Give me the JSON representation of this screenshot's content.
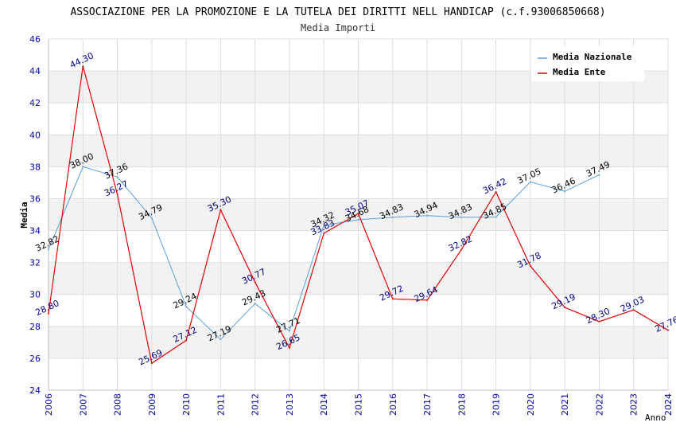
{
  "chart_data": {
    "type": "line",
    "title": "ASSOCIAZIONE PER LA PROMOZIONE E LA TUTELA DEI DIRITTI NELL HANDICAP (c.f.93006850668)",
    "subtitle": "Media Importi",
    "xlabel": "Anno",
    "ylabel": "Media",
    "ylim": [
      24,
      46
    ],
    "y_ticks": [
      "24",
      "26",
      "28",
      "30",
      "32",
      "34",
      "36",
      "38",
      "40",
      "42",
      "44",
      "46"
    ],
    "categories": [
      "2006",
      "2007",
      "2008",
      "2009",
      "2010",
      "2011",
      "2012",
      "2013",
      "2014",
      "2015",
      "2016",
      "2017",
      "2018",
      "2019",
      "2020",
      "2021",
      "2022",
      "2023",
      "2024"
    ],
    "legend_position": "top-right",
    "series": [
      {
        "name": "Media Nazionale",
        "color": "#5aa0dc",
        "label_color": "#000000",
        "values": [
          32.82,
          38.0,
          37.36,
          34.79,
          29.24,
          27.19,
          29.43,
          27.71,
          34.32,
          34.68,
          34.83,
          34.94,
          34.83,
          34.85,
          37.05,
          36.46,
          37.49,
          null,
          null
        ],
        "labels": [
          "32.82",
          "38.00",
          "37.36",
          "34.79",
          "29.24",
          "27.19",
          "29.43",
          "27.71",
          "34.32",
          "34.68",
          "34.83",
          "34.94",
          "34.83",
          "34.85",
          "37.05",
          "36.46",
          "37.49",
          null,
          null
        ]
      },
      {
        "name": "Media Ente",
        "color": "#e00000",
        "label_color": "#000080",
        "values": [
          28.8,
          44.3,
          36.27,
          25.69,
          27.12,
          35.3,
          30.77,
          26.65,
          33.83,
          35.07,
          29.72,
          29.64,
          32.82,
          36.42,
          31.78,
          29.19,
          28.3,
          29.03,
          27.76
        ],
        "labels": [
          "28.80",
          "44.30",
          "36.27",
          "25.69",
          "27.12",
          "35.30",
          "30.77",
          "26.65",
          "33.83",
          "35.07",
          "29.72",
          "29.64",
          "32.82",
          "36.42",
          "31.78",
          "29.19",
          "28.30",
          "29.03",
          "27.76"
        ]
      }
    ]
  }
}
